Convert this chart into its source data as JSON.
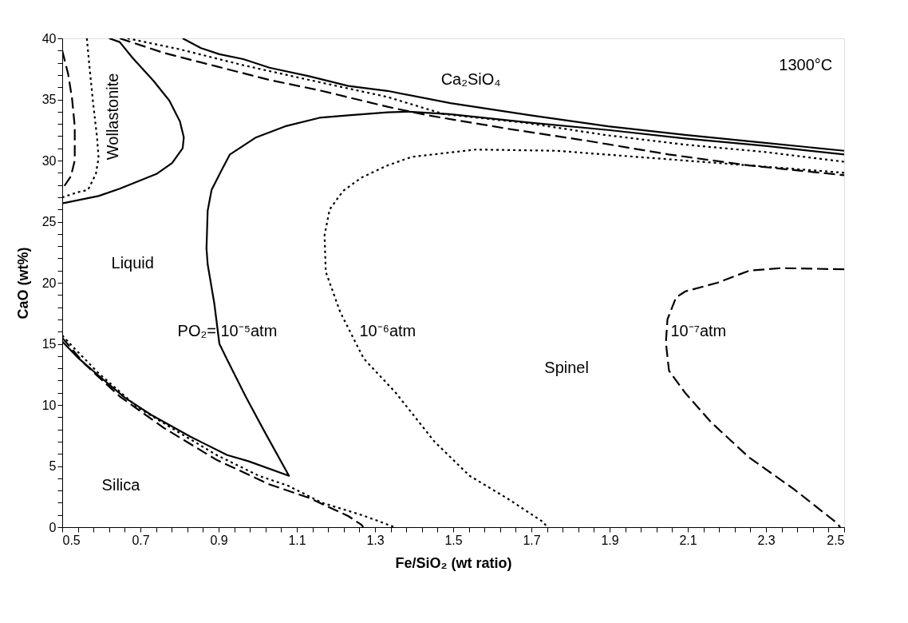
{
  "chart_data": {
    "type": "line",
    "xlabel": "Fe/SiO₂ (wt ratio)",
    "ylabel": "CaO  (wt%)",
    "xlim": [
      0.5,
      2.5
    ],
    "ylim": [
      0,
      40
    ],
    "xticks": [
      0.5,
      {
        "value": 0.54,
        "label": null
      },
      {
        "value": 0.58,
        "label": null
      },
      {
        "value": 0.62,
        "label": null
      },
      {
        "value": 0.66,
        "label": null
      },
      0.7,
      {
        "value": 0.74,
        "label": null
      },
      {
        "value": 0.78,
        "label": null
      },
      {
        "value": 0.82,
        "label": null
      },
      {
        "value": 0.86,
        "label": null
      },
      0.9,
      {
        "value": 0.94,
        "label": null
      },
      {
        "value": 0.98,
        "label": null
      },
      {
        "value": 1.02,
        "label": null
      },
      {
        "value": 1.06,
        "label": null
      },
      1.1,
      {
        "value": 1.14,
        "label": null
      },
      {
        "value": 1.18,
        "label": null
      },
      {
        "value": 1.22,
        "label": null
      },
      {
        "value": 1.26,
        "label": null
      },
      1.3,
      {
        "value": 1.34,
        "label": null
      },
      {
        "value": 1.38,
        "label": null
      },
      {
        "value": 1.42,
        "label": null
      },
      {
        "value": 1.46,
        "label": null
      },
      1.5,
      {
        "value": 1.54,
        "label": null
      },
      {
        "value": 1.58,
        "label": null
      },
      {
        "value": 1.62,
        "label": null
      },
      {
        "value": 1.66,
        "label": null
      },
      1.7,
      {
        "value": 1.74,
        "label": null
      },
      {
        "value": 1.78,
        "label": null
      },
      {
        "value": 1.82,
        "label": null
      },
      {
        "value": 1.86,
        "label": null
      },
      1.9,
      {
        "value": 1.94,
        "label": null
      },
      {
        "value": 1.98,
        "label": null
      },
      {
        "value": 2.02,
        "label": null
      },
      {
        "value": 2.06,
        "label": null
      },
      2.1,
      {
        "value": 2.14,
        "label": null
      },
      {
        "value": 2.18,
        "label": null
      },
      {
        "value": 2.22,
        "label": null
      },
      {
        "value": 2.26,
        "label": null
      },
      2.3,
      {
        "value": 2.34,
        "label": null
      },
      {
        "value": 2.38,
        "label": null
      },
      {
        "value": 2.42,
        "label": null
      },
      {
        "value": 2.46,
        "label": null
      },
      2.5
    ],
    "yticks": [
      0,
      {
        "value": 1,
        "label": null
      },
      {
        "value": 2,
        "label": null
      },
      {
        "value": 3,
        "label": null
      },
      {
        "value": 4,
        "label": null
      },
      5,
      {
        "value": 6,
        "label": null
      },
      {
        "value": 7,
        "label": null
      },
      {
        "value": 8,
        "label": null
      },
      {
        "value": 9,
        "label": null
      },
      10,
      {
        "value": 11,
        "label": null
      },
      {
        "value": 12,
        "label": null
      },
      {
        "value": 13,
        "label": null
      },
      {
        "value": 14,
        "label": null
      },
      15,
      {
        "value": 16,
        "label": null
      },
      {
        "value": 17,
        "label": null
      },
      {
        "value": 18,
        "label": null
      },
      {
        "value": 19,
        "label": null
      },
      20,
      {
        "value": 21,
        "label": null
      },
      {
        "value": 22,
        "label": null
      },
      {
        "value": 23,
        "label": null
      },
      {
        "value": 24,
        "label": null
      },
      25,
      {
        "value": 26,
        "label": null
      },
      {
        "value": 27,
        "label": null
      },
      {
        "value": 28,
        "label": null
      },
      {
        "value": 29,
        "label": null
      },
      30,
      {
        "value": 31,
        "label": null
      },
      {
        "value": 32,
        "label": null
      },
      {
        "value": 33,
        "label": null
      },
      {
        "value": 34,
        "label": null
      },
      35,
      {
        "value": 36,
        "label": null
      },
      {
        "value": 37,
        "label": null
      },
      {
        "value": 38,
        "label": null
      },
      {
        "value": 39,
        "label": null
      },
      40
    ],
    "grid": false,
    "marker": "none",
    "series": [
      {
        "color": "#000000",
        "line_style": "solid",
        "x": [
          0.62,
          0.647,
          0.68,
          0.734,
          0.774,
          0.801,
          0.811,
          0.808,
          0.781,
          0.741,
          0.694,
          0.647,
          0.593,
          0.5
        ],
        "values": [
          40,
          39.7,
          38.4,
          36.5,
          34.9,
          33.2,
          31.9,
          31.0,
          29.8,
          28.9,
          28.3,
          27.7,
          27.1,
          26.5
        ]
      },
      {
        "color": "#000000",
        "line_style": "dotted",
        "x": [
          0.563,
          0.569,
          0.579,
          0.589,
          0.593,
          0.586,
          0.566,
          0.539,
          0.502
        ],
        "values": [
          40,
          37.9,
          34.7,
          31.9,
          30.2,
          28.9,
          27.6,
          27.4,
          27.0
        ]
      },
      {
        "color": "#000000",
        "line_style": "dashed",
        "x": [
          0.5,
          0.515,
          0.525,
          0.532,
          0.532,
          0.522,
          0.505
        ],
        "values": [
          39.0,
          37.1,
          35.1,
          32.8,
          30.0,
          28.7,
          27.9
        ]
      },
      {
        "color": "#000000",
        "line_style": "solid",
        "x": [
          0.808,
          0.855,
          0.902,
          0.963,
          1.03,
          1.131,
          1.232,
          1.332,
          1.493,
          1.698,
          1.896,
          2.093,
          2.298,
          2.5
        ],
        "values": [
          40,
          39.2,
          38.7,
          38.3,
          37.6,
          36.9,
          36.1,
          35.7,
          34.7,
          33.7,
          32.8,
          32.1,
          31.45,
          30.8
        ]
      },
      {
        "color": "#000000",
        "line_style": "dotted",
        "x": [
          0.667,
          0.801,
          0.963,
          1.131,
          1.332,
          1.476,
          1.682,
          1.887,
          2.093,
          2.298,
          2.5
        ],
        "values": [
          40,
          39.1,
          37.8,
          36.6,
          35.2,
          33.8,
          33.1,
          32.1,
          31.3,
          30.7,
          29.9
        ]
      },
      {
        "color": "#000000",
        "line_style": "dashed",
        "x": [
          0.647,
          0.761,
          0.895,
          1.03,
          1.164,
          1.332,
          1.435,
          1.64,
          1.846,
          2.051,
          2.257,
          2.5
        ],
        "values": [
          40,
          38.8,
          37.7,
          36.6,
          35.7,
          34.4,
          33.7,
          32.6,
          31.6,
          30.5,
          29.6,
          28.8
        ]
      },
      {
        "color": "#000000",
        "line_style": "solid",
        "x": [
          2.5,
          2.298,
          2.093,
          1.896,
          1.698,
          1.49,
          1.386,
          1.332,
          1.232,
          1.158,
          1.07,
          0.996,
          0.929,
          0.909,
          0.882,
          0.872,
          0.869,
          0.872,
          0.889,
          0.902,
          0.922,
          0.969,
          1.016,
          1.08,
          0.976,
          0.922,
          0.828,
          0.727,
          0.66,
          0.593,
          0.539,
          0.5
        ],
        "values": [
          30.5,
          31.2,
          31.8,
          32.5,
          33.1,
          33.8,
          34.0,
          33.95,
          33.7,
          33.5,
          32.8,
          31.9,
          30.5,
          29.3,
          27.6,
          25.9,
          22.8,
          21.5,
          18.3,
          15.0,
          13.7,
          10.7,
          7.9,
          4.2,
          5.4,
          5.9,
          7.4,
          9.2,
          10.6,
          12.4,
          13.9,
          15.2
        ]
      },
      {
        "color": "#000000",
        "line_style": "dotted",
        "x": [
          2.5,
          2.298,
          2.093,
          1.928,
          1.764,
          1.558,
          1.394,
          1.332,
          1.265,
          1.218,
          1.184,
          1.171,
          1.174,
          1.211,
          1.252,
          1.271,
          1.353,
          1.452,
          1.542,
          1.641,
          1.731,
          1.74
        ],
        "values": [
          29.0,
          29.5,
          30.0,
          30.4,
          30.8,
          30.9,
          30.3,
          29.6,
          28.6,
          27.5,
          26.0,
          23.9,
          20.9,
          17.6,
          15.0,
          13.8,
          11.0,
          7.0,
          4.2,
          2.3,
          0.4,
          0
        ]
      },
      {
        "color": "#000000",
        "line_style": "dotted",
        "x": [
          0.5,
          0.526,
          0.593,
          0.693,
          0.801,
          0.895,
          1.003,
          1.077,
          1.164,
          1.265,
          1.3,
          1.35
        ],
        "values": [
          15.7,
          14.8,
          12.6,
          9.8,
          7.7,
          5.9,
          4.2,
          3.4,
          2.0,
          1.0,
          0.6,
          0
        ]
      },
      {
        "color": "#000000",
        "line_style": "dashed",
        "x": [
          0.5,
          0.559,
          0.647,
          0.761,
          0.895,
          1.03,
          1.131,
          1.232,
          1.265,
          1.27
        ],
        "values": [
          15.5,
          13.3,
          10.7,
          8.1,
          5.5,
          3.5,
          2.4,
          0.9,
          0.2,
          0
        ]
      },
      {
        "color": "#000000",
        "line_style": "dashed",
        "x": [
          2.5,
          2.34,
          2.258,
          2.176,
          2.094,
          2.07,
          2.048,
          2.044,
          2.052,
          2.093,
          2.159,
          2.257,
          2.372,
          2.479,
          2.49
        ],
        "values": [
          21.1,
          21.2,
          21.0,
          20.0,
          19.3,
          18.8,
          17.0,
          15.1,
          12.8,
          11.0,
          8.6,
          5.7,
          3.1,
          0.4,
          0
        ]
      }
    ],
    "annotations": [
      "Wollastonite",
      "Ca₂SiO₄",
      "1300°C",
      "Liquid",
      "PO₂= 10⁻⁵atm",
      "10⁻⁶atm",
      "10⁻⁷atm",
      "Spinel",
      "Silica"
    ]
  }
}
